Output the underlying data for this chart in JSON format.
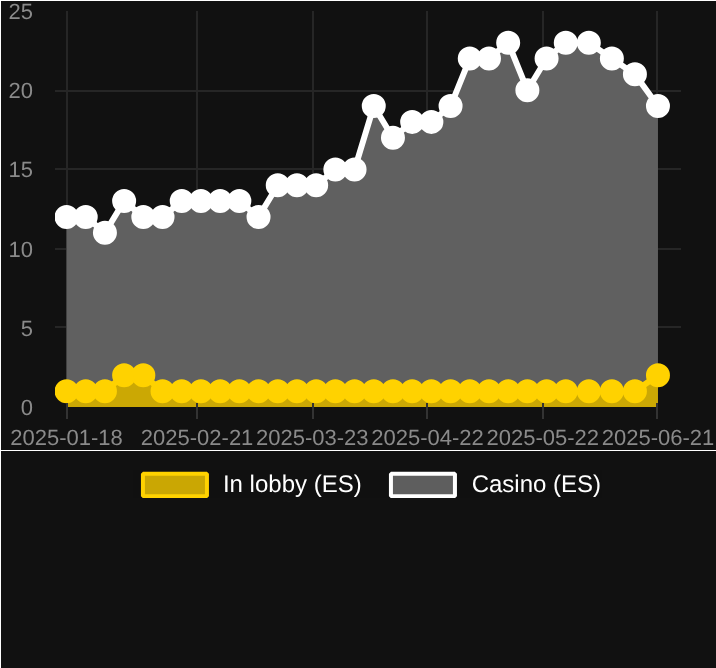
{
  "chart_data": {
    "type": "area",
    "x": [
      "2025-01-18",
      "2025-01-23",
      "2025-01-28",
      "2025-02-02",
      "2025-02-07",
      "2025-02-12",
      "2025-02-17",
      "2025-02-22",
      "2025-02-27",
      "2025-03-04",
      "2025-03-09",
      "2025-03-14",
      "2025-03-19",
      "2025-03-24",
      "2025-03-29",
      "2025-04-03",
      "2025-04-08",
      "2025-04-13",
      "2025-04-18",
      "2025-04-23",
      "2025-04-28",
      "2025-05-03",
      "2025-05-08",
      "2025-05-13",
      "2025-05-18",
      "2025-05-23",
      "2025-05-28",
      "2025-06-03",
      "2025-06-09",
      "2025-06-15",
      "2025-06-21"
    ],
    "series": [
      {
        "name": "In lobby (ES)",
        "color": "#ffd200",
        "values": [
          1,
          1,
          1,
          2,
          2,
          1,
          1,
          1,
          1,
          1,
          1,
          1,
          1,
          1,
          1,
          1,
          1,
          1,
          1,
          1,
          1,
          1,
          1,
          1,
          1,
          1,
          1,
          1,
          1,
          1,
          2
        ]
      },
      {
        "name": "Casino (ES)",
        "color": "#ffffff",
        "values": [
          12,
          12,
          11,
          13,
          12,
          12,
          13,
          13,
          13,
          13,
          12,
          14,
          14,
          14,
          15,
          15,
          19,
          17,
          18,
          18,
          19,
          22,
          22,
          23,
          20,
          22,
          23,
          23,
          22,
          21,
          19
        ]
      }
    ],
    "xlim": [
      "2025-01-15",
      "2025-06-27"
    ],
    "xticks": [
      "2025-01-18",
      "2025-02-21",
      "2025-03-23",
      "2025-04-22",
      "2025-05-22",
      "2025-06-21"
    ],
    "ylim": [
      0,
      25
    ],
    "yticks": [
      0,
      5,
      10,
      15,
      20,
      25
    ],
    "grid": true,
    "legend": "bottom",
    "marker": "circle"
  }
}
